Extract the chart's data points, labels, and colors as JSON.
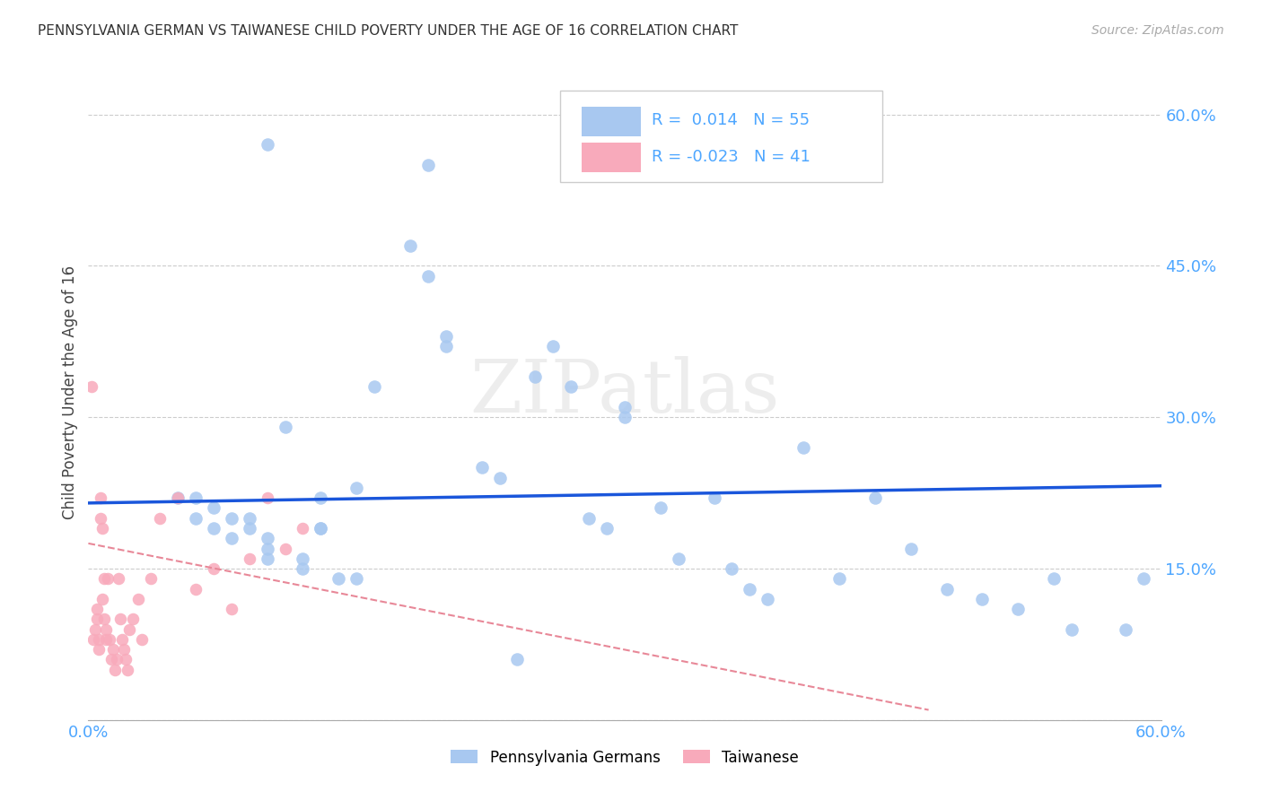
{
  "title": "PENNSYLVANIA GERMAN VS TAIWANESE CHILD POVERTY UNDER THE AGE OF 16 CORRELATION CHART",
  "source": "Source: ZipAtlas.com",
  "tick_color": "#4da6ff",
  "ylabel": "Child Poverty Under the Age of 16",
  "xlim": [
    0.0,
    0.6
  ],
  "ylim": [
    0.0,
    0.65
  ],
  "x_ticks": [
    0.0,
    0.1,
    0.2,
    0.3,
    0.4,
    0.5,
    0.6
  ],
  "x_tick_labels": [
    "0.0%",
    "",
    "",
    "",
    "",
    "",
    "60.0%"
  ],
  "y_ticks": [
    0.0,
    0.15,
    0.3,
    0.45,
    0.6
  ],
  "y_tick_labels": [
    "",
    "15.0%",
    "30.0%",
    "45.0%",
    "60.0%"
  ],
  "background_color": "#ffffff",
  "grid_color": "#cccccc",
  "blue_color": "#a8c8f0",
  "pink_color": "#f8aabb",
  "blue_line_color": "#1a56db",
  "pink_line_color": "#e88898",
  "legend_r_blue": "0.014",
  "legend_n_blue": "55",
  "legend_r_pink": "-0.023",
  "legend_n_pink": "41",
  "blue_scatter_x": [
    0.05,
    0.06,
    0.07,
    0.08,
    0.09,
    0.09,
    0.1,
    0.1,
    0.11,
    0.12,
    0.12,
    0.13,
    0.13,
    0.14,
    0.15,
    0.15,
    0.16,
    0.18,
    0.19,
    0.19,
    0.2,
    0.2,
    0.22,
    0.23,
    0.25,
    0.26,
    0.27,
    0.28,
    0.29,
    0.3,
    0.3,
    0.32,
    0.33,
    0.35,
    0.36,
    0.37,
    0.38,
    0.4,
    0.42,
    0.44,
    0.46,
    0.48,
    0.5,
    0.52,
    0.54,
    0.55,
    0.58,
    0.59,
    0.1,
    0.24,
    0.06,
    0.07,
    0.08,
    0.1,
    0.13
  ],
  "blue_scatter_y": [
    0.22,
    0.22,
    0.21,
    0.2,
    0.19,
    0.2,
    0.18,
    0.17,
    0.29,
    0.16,
    0.15,
    0.22,
    0.19,
    0.14,
    0.23,
    0.14,
    0.33,
    0.47,
    0.44,
    0.55,
    0.37,
    0.38,
    0.25,
    0.24,
    0.34,
    0.37,
    0.33,
    0.2,
    0.19,
    0.31,
    0.3,
    0.21,
    0.16,
    0.22,
    0.15,
    0.13,
    0.12,
    0.27,
    0.14,
    0.22,
    0.17,
    0.13,
    0.12,
    0.11,
    0.14,
    0.09,
    0.09,
    0.14,
    0.57,
    0.06,
    0.2,
    0.19,
    0.18,
    0.16,
    0.19
  ],
  "pink_scatter_x": [
    0.002,
    0.003,
    0.004,
    0.005,
    0.005,
    0.006,
    0.006,
    0.007,
    0.007,
    0.008,
    0.008,
    0.009,
    0.009,
    0.01,
    0.01,
    0.011,
    0.012,
    0.013,
    0.014,
    0.015,
    0.016,
    0.017,
    0.018,
    0.019,
    0.02,
    0.021,
    0.022,
    0.023,
    0.025,
    0.028,
    0.03,
    0.035,
    0.04,
    0.05,
    0.06,
    0.07,
    0.08,
    0.09,
    0.1,
    0.11,
    0.12
  ],
  "pink_scatter_y": [
    0.33,
    0.08,
    0.09,
    0.1,
    0.11,
    0.07,
    0.08,
    0.22,
    0.2,
    0.19,
    0.12,
    0.14,
    0.1,
    0.09,
    0.08,
    0.14,
    0.08,
    0.06,
    0.07,
    0.05,
    0.06,
    0.14,
    0.1,
    0.08,
    0.07,
    0.06,
    0.05,
    0.09,
    0.1,
    0.12,
    0.08,
    0.14,
    0.2,
    0.22,
    0.13,
    0.15,
    0.11,
    0.16,
    0.22,
    0.17,
    0.19
  ],
  "blue_trend_x": [
    0.0,
    0.6
  ],
  "blue_trend_y": [
    0.215,
    0.232
  ],
  "pink_trend_x": [
    0.0,
    0.47
  ],
  "pink_trend_y": [
    0.175,
    0.01
  ]
}
